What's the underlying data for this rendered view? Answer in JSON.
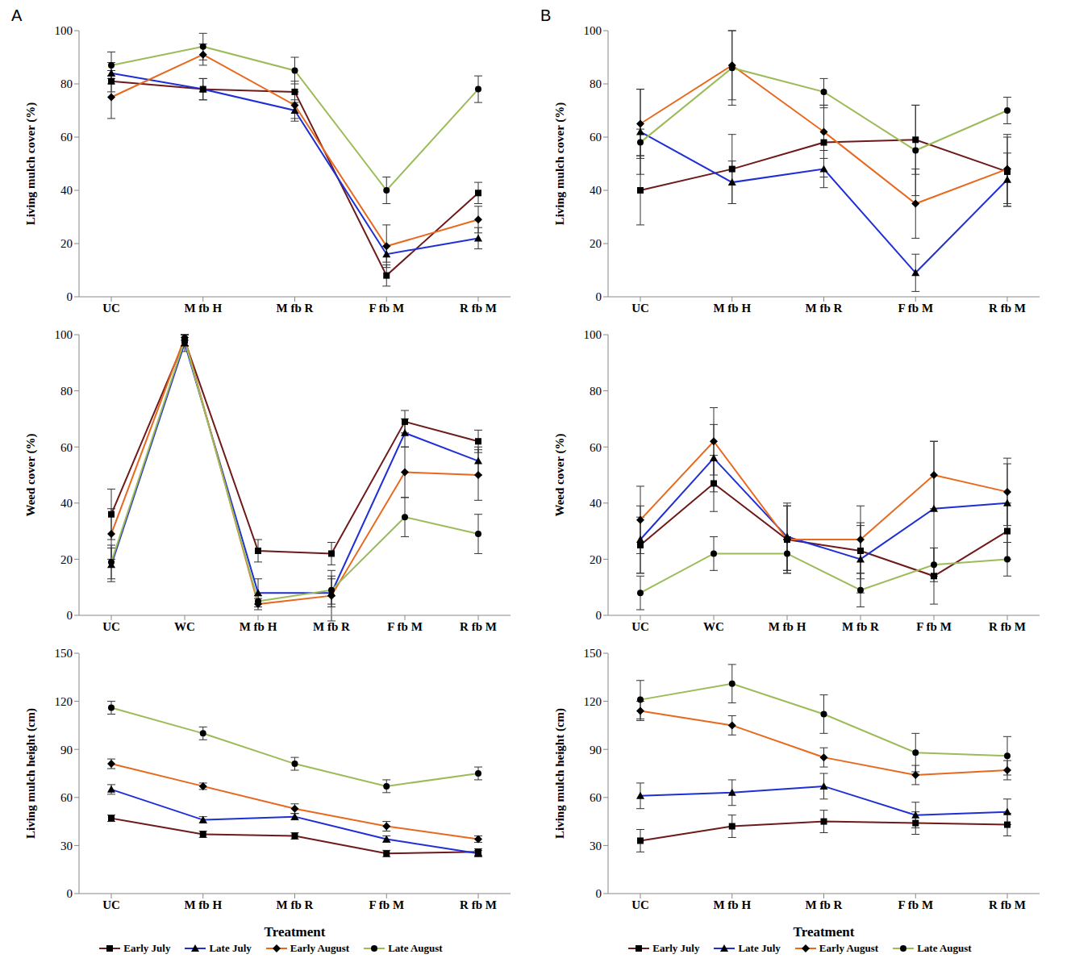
{
  "chart_data": [
    {
      "type": "line",
      "title": "A",
      "y_label": "Living mulch cover (%)",
      "categories": [
        "UC",
        "M fb H",
        "M fb R",
        "F fb M",
        "R fb M"
      ],
      "ylim": [
        0,
        100
      ],
      "yticks": [
        0,
        20,
        40,
        60,
        80,
        100
      ],
      "series": [
        {
          "name": "Early July",
          "color": "#6e1a1a",
          "marker": "square",
          "values": [
            81,
            78,
            77,
            8,
            39
          ],
          "errors": [
            4,
            4,
            4,
            4,
            4
          ]
        },
        {
          "name": "Late July",
          "color": "#1e2fd6",
          "marker": "triangle",
          "values": [
            84,
            78,
            70,
            16,
            22
          ],
          "errors": [
            4,
            4,
            4,
            3,
            4
          ]
        },
        {
          "name": "Early August",
          "color": "#e8691e",
          "marker": "diamond",
          "values": [
            75,
            91,
            72,
            19,
            29
          ],
          "errors": [
            8,
            4,
            5,
            8,
            5
          ]
        },
        {
          "name": "Late August",
          "color": "#9cbb59",
          "marker": "circle",
          "values": [
            87,
            94,
            85,
            40,
            78
          ],
          "errors": [
            5,
            5,
            5,
            5,
            5
          ]
        }
      ]
    },
    {
      "type": "line",
      "title": "B",
      "y_label": "Living mulch cover (%)",
      "categories": [
        "UC",
        "M fb H",
        "M fb R",
        "F fb M",
        "R fb M"
      ],
      "ylim": [
        0,
        100
      ],
      "yticks": [
        0,
        20,
        40,
        60,
        80,
        100
      ],
      "series": [
        {
          "name": "Early July",
          "color": "#6e1a1a",
          "marker": "square",
          "values": [
            40,
            48,
            58,
            59,
            47
          ],
          "errors": [
            13,
            13,
            13,
            13,
            13
          ]
        },
        {
          "name": "Late July",
          "color": "#1e2fd6",
          "marker": "triangle",
          "values": [
            62,
            43,
            48,
            9,
            44
          ],
          "errors": [
            16,
            8,
            7,
            7,
            10
          ]
        },
        {
          "name": "Early August",
          "color": "#e8691e",
          "marker": "diamond",
          "values": [
            65,
            87,
            62,
            35,
            48
          ],
          "errors": [
            13,
            13,
            10,
            13,
            13
          ]
        },
        {
          "name": "Late August",
          "color": "#9cbb59",
          "marker": "circle",
          "values": [
            58,
            86,
            77,
            55,
            70
          ],
          "errors": [
            5,
            14,
            5,
            17,
            5
          ]
        }
      ]
    },
    {
      "type": "line",
      "y_label": "Weed cover (%)",
      "categories": [
        "UC",
        "WC",
        "M fb H",
        "M fb R",
        "F fb M",
        "R fb M"
      ],
      "ylim": [
        0,
        100
      ],
      "yticks": [
        0,
        20,
        40,
        60,
        80,
        100
      ],
      "series": [
        {
          "name": "Early July",
          "color": "#6e1a1a",
          "marker": "square",
          "values": [
            36,
            98,
            23,
            22,
            69,
            62
          ],
          "errors": [
            9,
            2,
            4,
            4,
            4,
            4
          ]
        },
        {
          "name": "Late July",
          "color": "#1e2fd6",
          "marker": "triangle",
          "values": [
            18,
            97,
            8,
            8,
            65,
            55
          ],
          "errors": [
            6,
            3,
            5,
            5,
            5,
            5
          ]
        },
        {
          "name": "Early August",
          "color": "#e8691e",
          "marker": "diamond",
          "values": [
            29,
            99,
            4,
            7,
            51,
            50
          ],
          "errors": [
            9,
            1,
            2,
            9,
            9,
            9
          ]
        },
        {
          "name": "Late August",
          "color": "#9cbb59",
          "marker": "circle",
          "values": [
            19,
            98,
            5,
            9,
            35,
            29
          ],
          "errors": [
            6,
            2,
            2,
            5,
            7,
            7
          ]
        }
      ]
    },
    {
      "type": "line",
      "y_label": "Weed cover (%)",
      "categories": [
        "UC",
        "WC",
        "M fb H",
        "M fb R",
        "F fb M",
        "R fb M"
      ],
      "ylim": [
        0,
        100
      ],
      "yticks": [
        0,
        20,
        40,
        60,
        80,
        100
      ],
      "series": [
        {
          "name": "Early July",
          "color": "#6e1a1a",
          "marker": "square",
          "values": [
            25,
            47,
            27,
            23,
            14,
            30
          ],
          "errors": [
            10,
            10,
            12,
            10,
            10,
            10
          ]
        },
        {
          "name": "Late July",
          "color": "#1e2fd6",
          "marker": "triangle",
          "values": [
            27,
            56,
            28,
            20,
            38,
            40
          ],
          "errors": [
            12,
            12,
            12,
            12,
            24,
            14
          ]
        },
        {
          "name": "Early August",
          "color": "#e8691e",
          "marker": "diamond",
          "values": [
            34,
            62,
            27,
            27,
            50,
            44
          ],
          "errors": [
            12,
            12,
            12,
            12,
            12,
            12
          ]
        },
        {
          "name": "Late August",
          "color": "#9cbb59",
          "marker": "circle",
          "values": [
            8,
            22,
            22,
            9,
            18,
            20
          ],
          "errors": [
            6,
            6,
            6,
            6,
            6,
            6
          ]
        }
      ]
    },
    {
      "type": "line",
      "y_label": "Living mulch height (cm)",
      "x_label": "Treatment",
      "legend": "bottom",
      "categories": [
        "UC",
        "M fb H",
        "M fb R",
        "F fb M",
        "R fb M"
      ],
      "ylim": [
        0,
        150
      ],
      "yticks": [
        0,
        30,
        60,
        90,
        120,
        150
      ],
      "series": [
        {
          "name": "Early July",
          "color": "#6e1a1a",
          "marker": "square",
          "values": [
            47,
            37,
            36,
            25,
            26
          ],
          "errors": [
            2,
            2,
            2,
            2,
            2
          ]
        },
        {
          "name": "Late July",
          "color": "#1e2fd6",
          "marker": "triangle",
          "values": [
            65,
            46,
            48,
            34,
            25
          ],
          "errors": [
            3,
            2,
            2,
            2,
            2
          ]
        },
        {
          "name": "Early August",
          "color": "#e8691e",
          "marker": "diamond",
          "values": [
            81,
            67,
            53,
            42,
            34
          ],
          "errors": [
            3,
            2,
            3,
            3,
            2
          ]
        },
        {
          "name": "Late August",
          "color": "#9cbb59",
          "marker": "circle",
          "values": [
            116,
            100,
            81,
            67,
            75
          ],
          "errors": [
            4,
            4,
            4,
            4,
            4
          ]
        }
      ]
    },
    {
      "type": "line",
      "y_label": "Living mulch height (cm)",
      "x_label": "Treatment",
      "legend": "bottom",
      "categories": [
        "UC",
        "M fb H",
        "M fb R",
        "F fb M",
        "R fb M"
      ],
      "ylim": [
        0,
        150
      ],
      "yticks": [
        0,
        30,
        60,
        90,
        120,
        150
      ],
      "series": [
        {
          "name": "Early July",
          "color": "#6e1a1a",
          "marker": "square",
          "values": [
            33,
            42,
            45,
            44,
            43
          ],
          "errors": [
            7,
            7,
            7,
            7,
            7
          ]
        },
        {
          "name": "Late July",
          "color": "#1e2fd6",
          "marker": "triangle",
          "values": [
            61,
            63,
            67,
            49,
            51
          ],
          "errors": [
            8,
            8,
            8,
            8,
            8
          ]
        },
        {
          "name": "Early August",
          "color": "#e8691e",
          "marker": "diamond",
          "values": [
            114,
            105,
            85,
            74,
            77
          ],
          "errors": [
            6,
            6,
            6,
            6,
            6
          ]
        },
        {
          "name": "Late August",
          "color": "#9cbb59",
          "marker": "circle",
          "values": [
            121,
            131,
            112,
            88,
            86
          ],
          "errors": [
            12,
            12,
            12,
            12,
            12
          ]
        }
      ]
    }
  ]
}
